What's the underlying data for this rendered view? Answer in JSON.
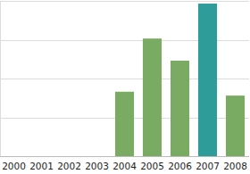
{
  "chart_data": {
    "type": "bar",
    "categories": [
      "2000",
      "2001",
      "2002",
      "2003",
      "2004",
      "2005",
      "2006",
      "2007",
      "2008"
    ],
    "values": [
      0,
      0,
      0,
      0,
      1.66,
      3.03,
      2.46,
      3.93,
      1.56
    ],
    "colors": [
      "#7aab62",
      "#7aab62",
      "#7aab62",
      "#7aab62",
      "#7aab62",
      "#7aab62",
      "#7aab62",
      "#2e9c98",
      "#7aab62"
    ],
    "ylim": [
      0,
      4
    ],
    "yticks": [
      0,
      1,
      2,
      3,
      4
    ],
    "grid": true,
    "tick_labels": "x"
  }
}
